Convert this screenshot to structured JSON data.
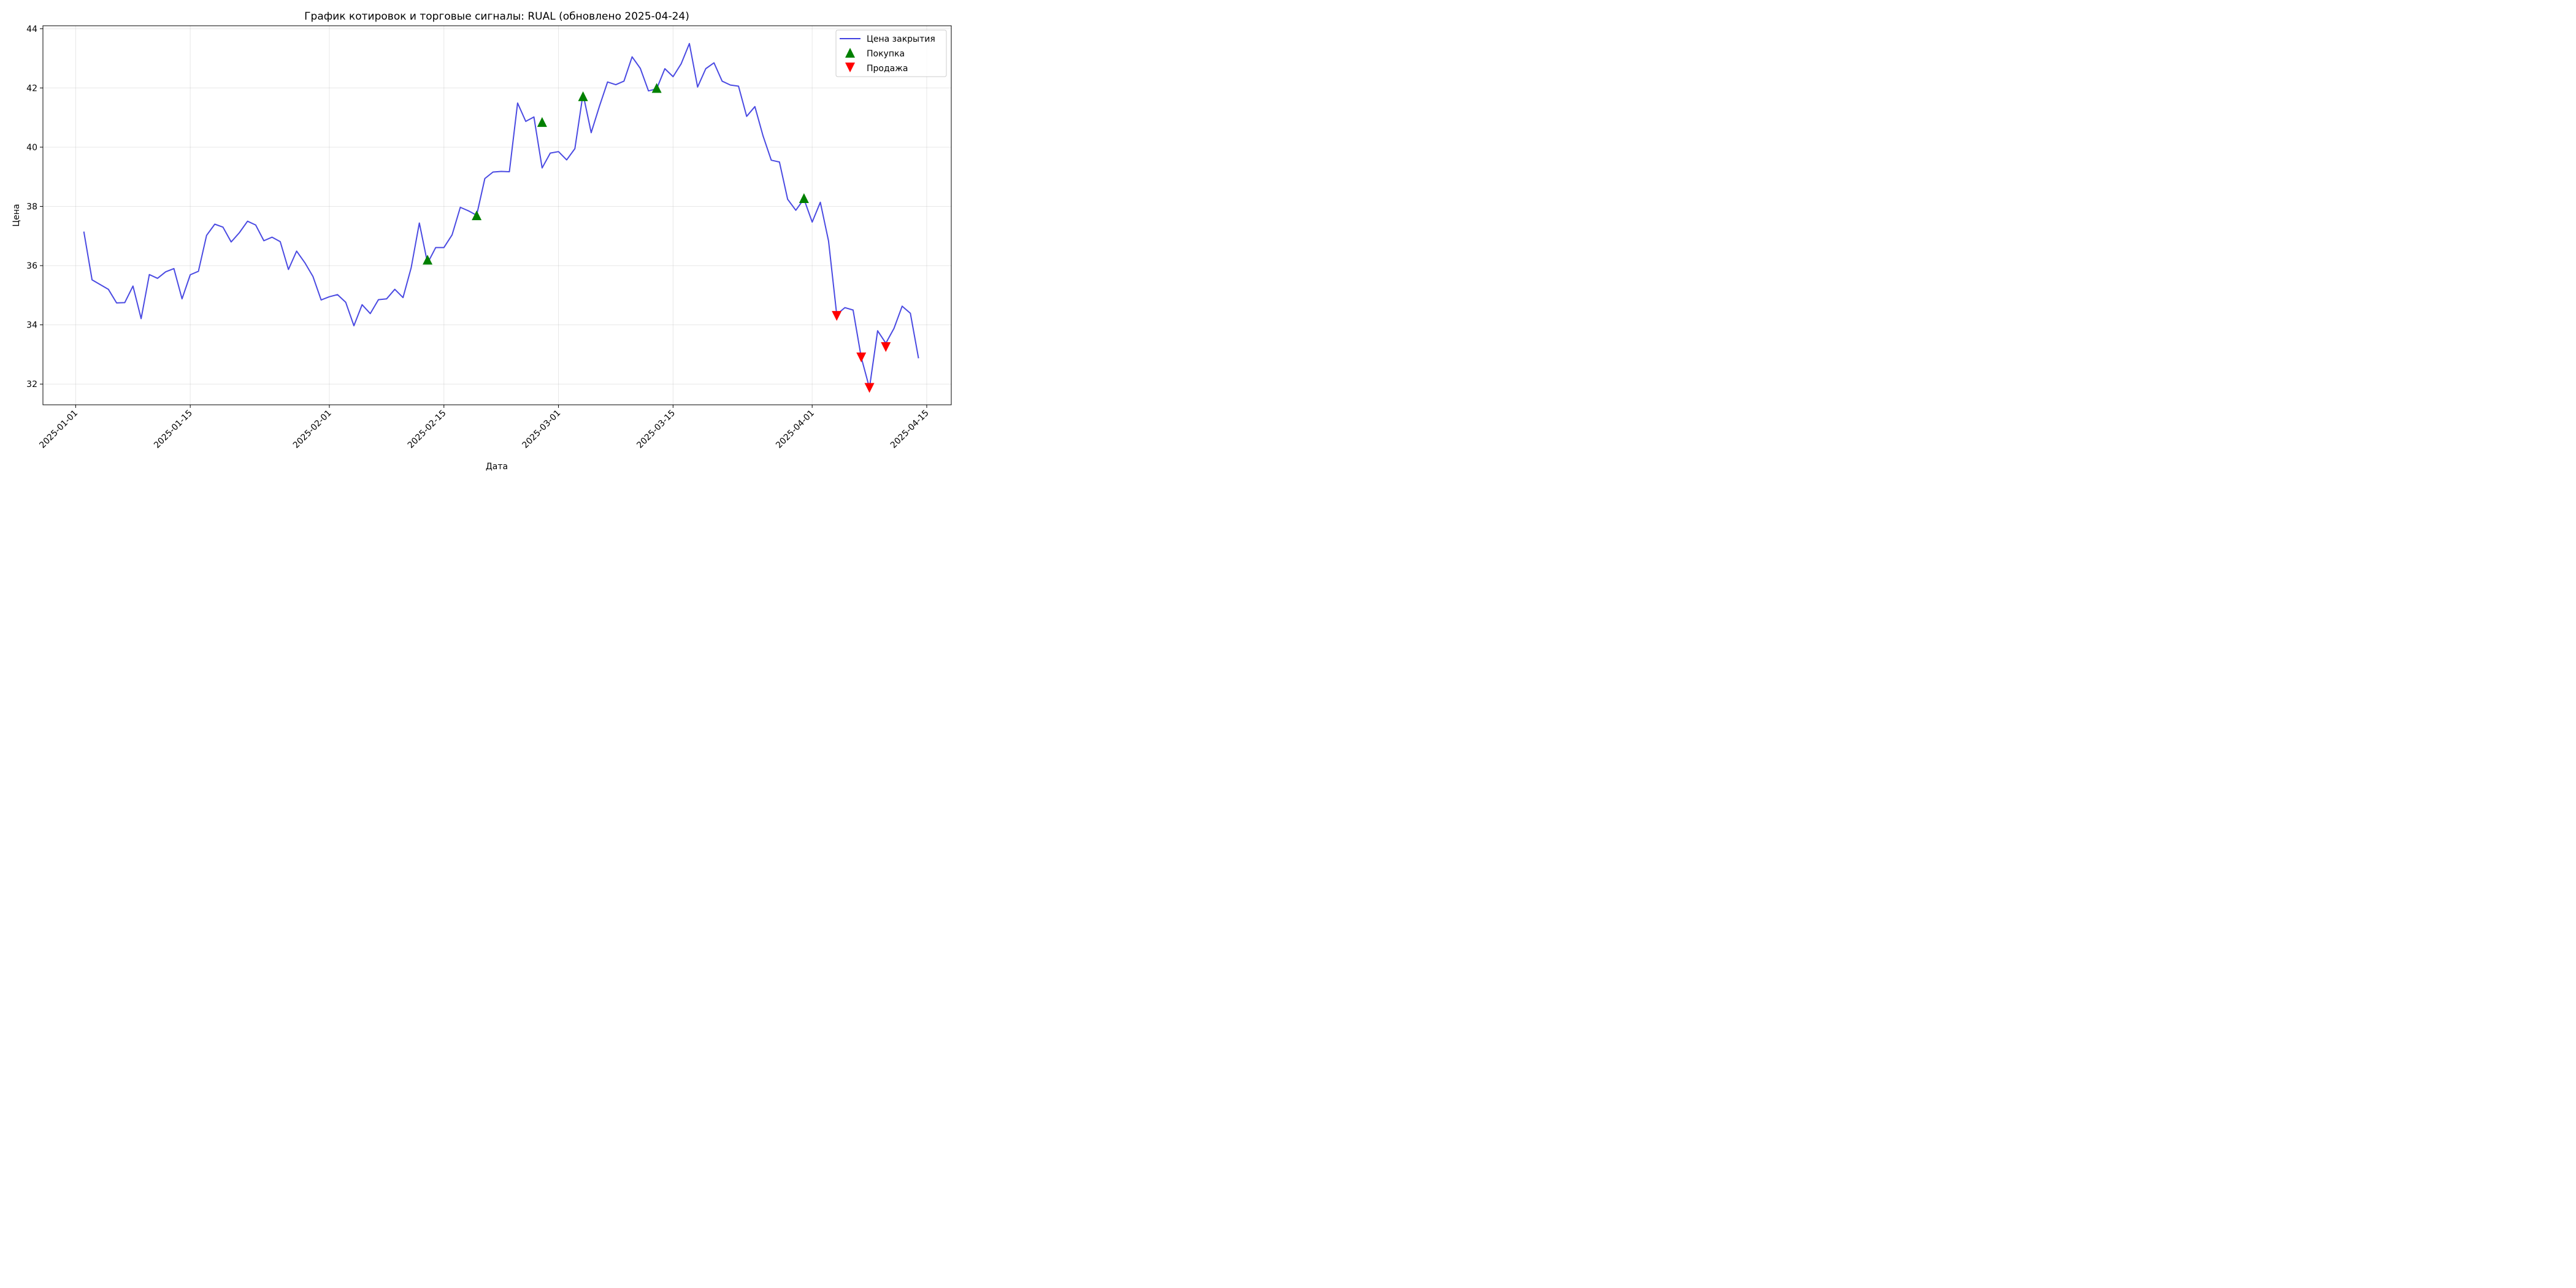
{
  "chart_data": {
    "type": "line",
    "title": "График котировок и торговые сигналы: RUAL (обновлено 2025-04-24)",
    "xlabel": "Дата",
    "ylabel": "Цена",
    "xlim": [
      "2024-12-28",
      "2025-04-18"
    ],
    "ylim": [
      31.3,
      44.1
    ],
    "grid": true,
    "legend_position": "top-right",
    "x_ticks": [
      "2025-01-01",
      "2025-01-15",
      "2025-02-01",
      "2025-02-15",
      "2025-03-01",
      "2025-03-15",
      "2025-04-01",
      "2025-04-15"
    ],
    "y_ticks": [
      32,
      34,
      36,
      38,
      40,
      42,
      44
    ],
    "series": [
      {
        "name": "Цена закрытия",
        "color": "#4040e0",
        "style": "line",
        "x": [
          "2025-01-02",
          "2025-01-03",
          "2025-01-04",
          "2025-01-05",
          "2025-01-06",
          "2025-01-07",
          "2025-01-08",
          "2025-01-09",
          "2025-01-10",
          "2025-01-11",
          "2025-01-12",
          "2025-01-13",
          "2025-01-14",
          "2025-01-15",
          "2025-01-16",
          "2025-01-17",
          "2025-01-18",
          "2025-01-19",
          "2025-01-20",
          "2025-01-21",
          "2025-01-22",
          "2025-01-23",
          "2025-01-24",
          "2025-01-25",
          "2025-01-26",
          "2025-01-27",
          "2025-01-28",
          "2025-01-29",
          "2025-01-30",
          "2025-01-31",
          "2025-02-01",
          "2025-02-02",
          "2025-02-03",
          "2025-02-04",
          "2025-02-05",
          "2025-02-06",
          "2025-02-07",
          "2025-02-08",
          "2025-02-09",
          "2025-02-10",
          "2025-02-11",
          "2025-02-12",
          "2025-02-13",
          "2025-02-14",
          "2025-02-15",
          "2025-02-16",
          "2025-02-17",
          "2025-02-18",
          "2025-02-19",
          "2025-02-20",
          "2025-02-21",
          "2025-02-22",
          "2025-02-23",
          "2025-02-24",
          "2025-02-25",
          "2025-02-26",
          "2025-02-27",
          "2025-02-28",
          "2025-03-01",
          "2025-03-02",
          "2025-03-03",
          "2025-03-04",
          "2025-03-05",
          "2025-03-06",
          "2025-03-07",
          "2025-03-08",
          "2025-03-09",
          "2025-03-10",
          "2025-03-11",
          "2025-03-12",
          "2025-03-13",
          "2025-03-14",
          "2025-03-15",
          "2025-03-16",
          "2025-03-17",
          "2025-03-18",
          "2025-03-19",
          "2025-03-20",
          "2025-03-21",
          "2025-03-22",
          "2025-03-23",
          "2025-03-24",
          "2025-03-25",
          "2025-03-26",
          "2025-03-27",
          "2025-03-28",
          "2025-03-29",
          "2025-03-30",
          "2025-03-31",
          "2025-04-01",
          "2025-04-02",
          "2025-04-03",
          "2025-04-04",
          "2025-04-05",
          "2025-04-06",
          "2025-04-07",
          "2025-04-08",
          "2025-04-09",
          "2025-04-10",
          "2025-04-11",
          "2025-04-12",
          "2025-04-13",
          "2025-04-14"
        ],
        "y": [
          37.15,
          35.52,
          35.36,
          35.2,
          34.74,
          34.75,
          35.31,
          34.21,
          35.7,
          35.57,
          35.79,
          35.9,
          34.88,
          35.69,
          35.81,
          37.02,
          37.4,
          37.3,
          36.8,
          37.11,
          37.5,
          37.37,
          36.84,
          36.96,
          36.81,
          35.87,
          36.49,
          36.1,
          35.63,
          34.84,
          34.95,
          35.02,
          34.76,
          33.97,
          34.68,
          34.38,
          34.85,
          34.88,
          35.2,
          34.92,
          35.93,
          37.44,
          36.08,
          36.61,
          36.61,
          37.04,
          37.97,
          37.85,
          37.7,
          38.94,
          39.16,
          39.18,
          39.17,
          41.49,
          40.87,
          41.02,
          39.3,
          39.8,
          39.85,
          39.57,
          39.95,
          41.8,
          40.49,
          41.38,
          42.2,
          42.11,
          42.23,
          43.05,
          42.66,
          41.9,
          41.97,
          42.65,
          42.38,
          42.82,
          43.5,
          42.03,
          42.65,
          42.85,
          42.23,
          42.1,
          42.06,
          41.04,
          41.37,
          40.38,
          39.56,
          39.5,
          38.24,
          37.87,
          38.25,
          37.47,
          38.14,
          36.83,
          34.35,
          34.58,
          34.5,
          32.9,
          31.87,
          33.8,
          33.38,
          33.88,
          34.63,
          34.39,
          32.87
        ]
      },
      {
        "name": "Покупка",
        "color": "#008000",
        "style": "triangle-up",
        "x": [
          "2025-02-13",
          "2025-02-19",
          "2025-02-27",
          "2025-03-04",
          "2025-03-13",
          "2025-03-31"
        ],
        "y": [
          36.2,
          37.7,
          40.85,
          41.72,
          42.0,
          38.28
        ]
      },
      {
        "name": "Продажа",
        "color": "#ff0000",
        "style": "triangle-down",
        "x": [
          "2025-04-04",
          "2025-04-07",
          "2025-04-08",
          "2025-04-10"
        ],
        "y": [
          34.3,
          32.9,
          31.87,
          33.25
        ]
      }
    ]
  }
}
